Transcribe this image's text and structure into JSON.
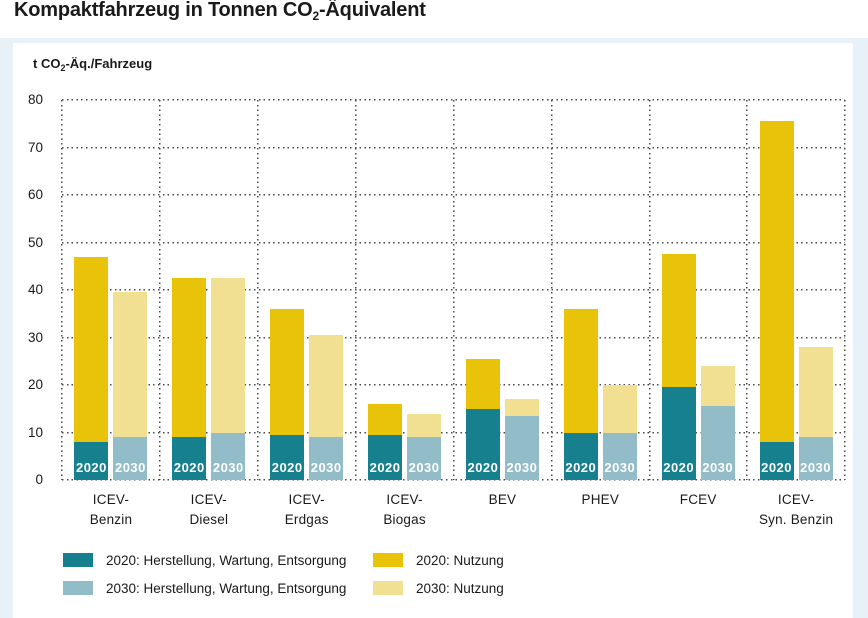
{
  "title": {
    "pre": "Kompaktfahrzeug in Tonnen CO",
    "sub": "2",
    "post": "-Äquivalent"
  },
  "colors": {
    "teal_2020_herstellung": "#16808e",
    "lightblue_2030_herstellung": "#92bdc8",
    "gold_2020_nutzung": "#e9c30a",
    "lightyellow_2030_nutzung": "#f2e092",
    "panel_background": "#e8f1f8",
    "grid_dots": "#4a4a4a",
    "bar_year_text": "#ffffff"
  },
  "chart_data": {
    "type": "bar",
    "stacked": true,
    "ylabel": {
      "pre": "t CO",
      "sub": "2",
      "post": "-Äq./Fahrzeug"
    },
    "ylim": [
      0,
      80
    ],
    "yticks": [
      0,
      10,
      20,
      30,
      40,
      50,
      60,
      70,
      80
    ],
    "grid": {
      "horizontal_dotted": true,
      "vertical_group_separators_dotted": true
    },
    "categories": [
      "ICEV-Benzin",
      "ICEV-Diesel",
      "ICEV-Erdgas",
      "ICEV-Biogas",
      "BEV",
      "PHEV",
      "FCEV",
      "ICEV-Syn. Benzin"
    ],
    "category_label_lines": [
      [
        "ICEV-",
        "Benzin"
      ],
      [
        "ICEV-",
        "Diesel"
      ],
      [
        "ICEV-",
        "Erdgas"
      ],
      [
        "ICEV-",
        "Biogas"
      ],
      [
        "BEV"
      ],
      [
        "PHEV"
      ],
      [
        "FCEV"
      ],
      [
        "ICEV-",
        "Syn. Benzin"
      ]
    ],
    "bar_year_labels": [
      "2020",
      "2030"
    ],
    "series": [
      {
        "name": "2020: Herstellung, Wartung, Entsorgung",
        "bar": "2020",
        "stack_position": "bottom",
        "color": "#16808e",
        "values": [
          8,
          9,
          9.5,
          9.5,
          15,
          10,
          19.5,
          8
        ]
      },
      {
        "name": "2020: Nutzung",
        "bar": "2020",
        "stack_position": "top",
        "color": "#e9c30a",
        "values": [
          39,
          33.5,
          26.5,
          6.5,
          10.5,
          26,
          28,
          67.5
        ]
      },
      {
        "name": "2030: Herstellung, Wartung, Entsorgung",
        "bar": "2030",
        "stack_position": "bottom",
        "color": "#92bdc8",
        "values": [
          9,
          10,
          9,
          9,
          13.5,
          10,
          15.5,
          9
        ]
      },
      {
        "name": "2030: Nutzung",
        "bar": "2030",
        "stack_position": "top",
        "color": "#f2e092",
        "values": [
          30.5,
          32.5,
          21.5,
          5,
          3.5,
          10,
          8.5,
          19
        ]
      }
    ],
    "totals_2020": [
      47,
      42.5,
      36,
      16,
      25.5,
      36,
      47.5,
      75.5
    ],
    "totals_2030": [
      39.5,
      42.5,
      30.5,
      14,
      17,
      20,
      24,
      28
    ],
    "legend_position": "bottom"
  },
  "legend": {
    "columns": [
      [
        {
          "label": "2020: Herstellung, Wartung, Entsorgung",
          "color": "#16808e"
        },
        {
          "label": "2030: Herstellung, Wartung, Entsorgung",
          "color": "#92bdc8"
        }
      ],
      [
        {
          "label": "2020: Nutzung",
          "color": "#e9c30a"
        },
        {
          "label": "2030: Nutzung",
          "color": "#f2e092"
        }
      ]
    ]
  }
}
